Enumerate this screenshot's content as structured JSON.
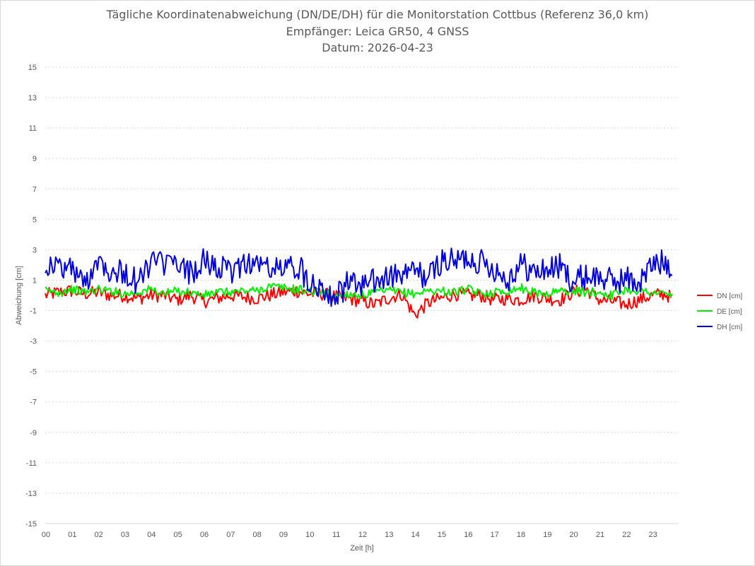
{
  "chart_data": {
    "type": "line",
    "title_lines": [
      "Tägliche Koordinatenabweichung (DN/DE/DH) für die Monitorstation Cottbus (Referenz 36,0 km)",
      "Empfänger: Leica GR50, 4 GNSS",
      "Datum: 2026-04-23"
    ],
    "xlabel": "Zeit [h]",
    "ylabel": "Abweichung [cm]",
    "xlim": [
      0,
      24
    ],
    "ylim": [
      -15,
      15
    ],
    "x_ticks": [
      "00",
      "01",
      "02",
      "03",
      "04",
      "05",
      "06",
      "07",
      "08",
      "09",
      "10",
      "11",
      "12",
      "13",
      "14",
      "15",
      "16",
      "17",
      "18",
      "19",
      "20",
      "21",
      "22",
      "23"
    ],
    "y_ticks": [
      15,
      13,
      11,
      9,
      7,
      5,
      3,
      1,
      -1,
      -3,
      -5,
      -7,
      -9,
      -11,
      -13,
      -15
    ],
    "grid": "horizontal dotted",
    "legend_position": "right",
    "x": [
      0,
      0.5,
      1,
      1.5,
      2,
      2.5,
      3,
      3.5,
      4,
      4.5,
      5,
      5.5,
      6,
      6.5,
      7,
      7.5,
      8,
      8.5,
      9,
      9.5,
      10,
      10.5,
      11,
      11.5,
      12,
      12.5,
      13,
      13.5,
      14,
      14.5,
      15,
      15.5,
      16,
      16.5,
      17,
      17.5,
      18,
      18.5,
      19,
      19.5,
      20,
      20.5,
      21,
      21.5,
      22,
      22.5,
      23,
      23.5,
      23.75
    ],
    "series": [
      {
        "name": "DN [cm]",
        "color": "#ff0000",
        "values": [
          0.0,
          0.2,
          0.3,
          0.1,
          0.2,
          0.0,
          0.0,
          -0.2,
          0.0,
          0.0,
          -0.3,
          0.0,
          -0.4,
          -0.2,
          0.0,
          -0.1,
          -0.2,
          0.0,
          0.2,
          0.3,
          0.1,
          0.1,
          -0.1,
          -0.2,
          -0.4,
          -0.6,
          -0.2,
          0.1,
          -1.3,
          -0.5,
          -0.2,
          0.1,
          0.0,
          0.0,
          -0.3,
          -0.2,
          -0.3,
          0.0,
          -0.2,
          -0.3,
          0.2,
          0.4,
          -0.3,
          -0.4,
          -0.6,
          -0.3,
          0.0,
          0.1,
          -0.2
        ]
      },
      {
        "name": "DE [cm]",
        "color": "#00ee00",
        "values": [
          0.3,
          0.2,
          0.4,
          0.2,
          0.4,
          0.3,
          0.1,
          0.2,
          0.4,
          0.1,
          0.3,
          0.2,
          0.0,
          0.2,
          0.2,
          0.3,
          0.3,
          0.6,
          0.5,
          0.4,
          0.3,
          0.2,
          0.0,
          0.1,
          0.0,
          0.2,
          0.3,
          0.2,
          0.1,
          0.3,
          0.3,
          0.2,
          0.4,
          0.1,
          0.2,
          0.3,
          0.5,
          0.2,
          0.1,
          0.3,
          0.3,
          0.2,
          0.2,
          0.0,
          0.4,
          0.3,
          0.2,
          0.1,
          0.0
        ]
      },
      {
        "name": "DH [cm]",
        "color": "#0000dd",
        "values": [
          2.0,
          1.9,
          1.8,
          0.7,
          2.5,
          1.6,
          1.5,
          0.8,
          2.2,
          2.1,
          1.9,
          1.5,
          2.2,
          1.9,
          1.4,
          2.2,
          2.1,
          1.8,
          1.7,
          2.0,
          1.0,
          0.6,
          -0.1,
          0.8,
          0.7,
          0.9,
          1.2,
          1.3,
          1.6,
          1.1,
          2.3,
          2.2,
          2.5,
          2.2,
          1.8,
          1.0,
          2.1,
          1.5,
          1.7,
          1.9,
          0.9,
          1.3,
          1.2,
          0.9,
          1.1,
          0.8,
          2.0,
          2.2,
          1.9
        ]
      }
    ]
  }
}
